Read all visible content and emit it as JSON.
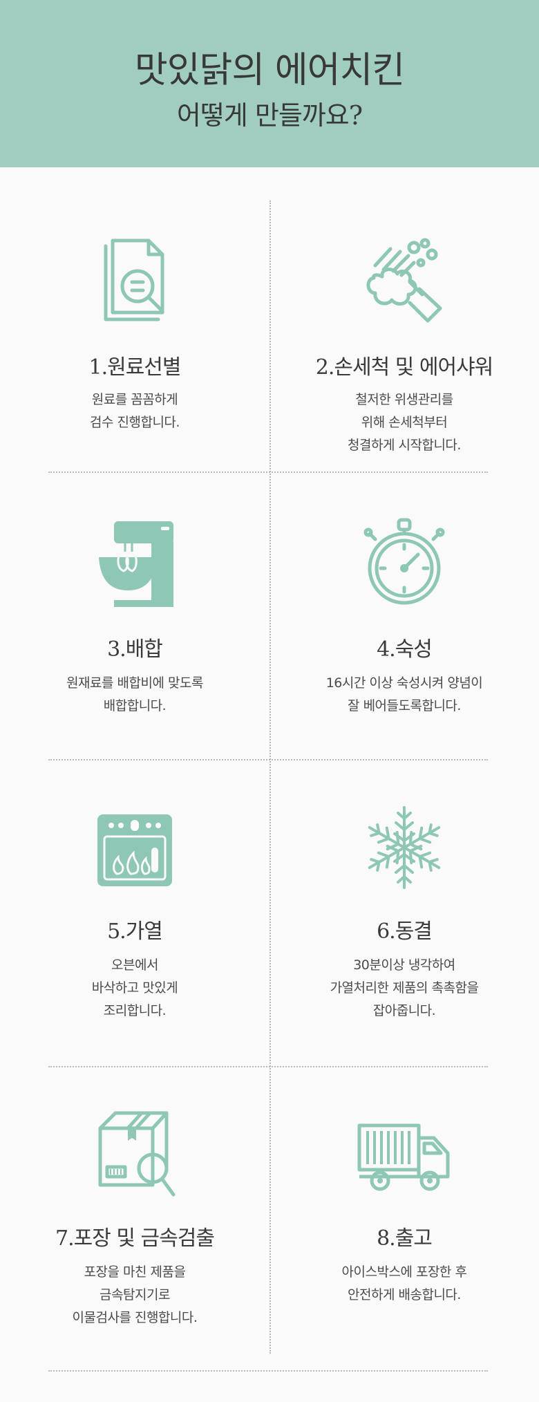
{
  "header": {
    "title": "맛있닭의 에어치킨",
    "subtitle": "어떻게 만들까요?"
  },
  "colors": {
    "accent": "#a1cdc1",
    "icon": "#8ec7b5",
    "text": "#3c3c3c",
    "background": "#fafafa"
  },
  "steps": [
    {
      "title": "1.원료선별",
      "icon": "document-search-icon",
      "desc": [
        "원료를 꼼꼼하게",
        "검수 진행합니다."
      ]
    },
    {
      "title": "2.손세척 및 에어샤워",
      "icon": "hand-wash-icon",
      "desc": [
        "철저한 위생관리를",
        "위해 손세척부터",
        "청결하게 시작합니다."
      ]
    },
    {
      "title": "3.배합",
      "icon": "stand-mixer-icon",
      "desc": [
        "원재료를 배합비에 맞도록",
        "배합합니다."
      ]
    },
    {
      "title": "4.숙성",
      "icon": "stopwatch-icon",
      "desc": [
        "16시간 이상 숙성시켜 양념이",
        "잘 베어들도록합니다."
      ]
    },
    {
      "title": "5.가열",
      "icon": "oven-icon",
      "desc": [
        "오븐에서",
        "바삭하고 맛있게",
        "조리합니다."
      ]
    },
    {
      "title": "6.동결",
      "icon": "snowflake-icon",
      "desc": [
        "30분이상 냉각하여",
        "가열처리한 제품의 촉촉함을",
        "잡아줍니다."
      ]
    },
    {
      "title": "7.포장 및 금속검출",
      "icon": "box-inspect-icon",
      "desc": [
        "포장을 마친 제품을",
        "금속탐지기로",
        "이물검사를 진행합니다."
      ]
    },
    {
      "title": "8.출고",
      "icon": "delivery-truck-icon",
      "desc": [
        "아이스박스에 포장한 후",
        "안전하게 배송합니다."
      ]
    }
  ]
}
